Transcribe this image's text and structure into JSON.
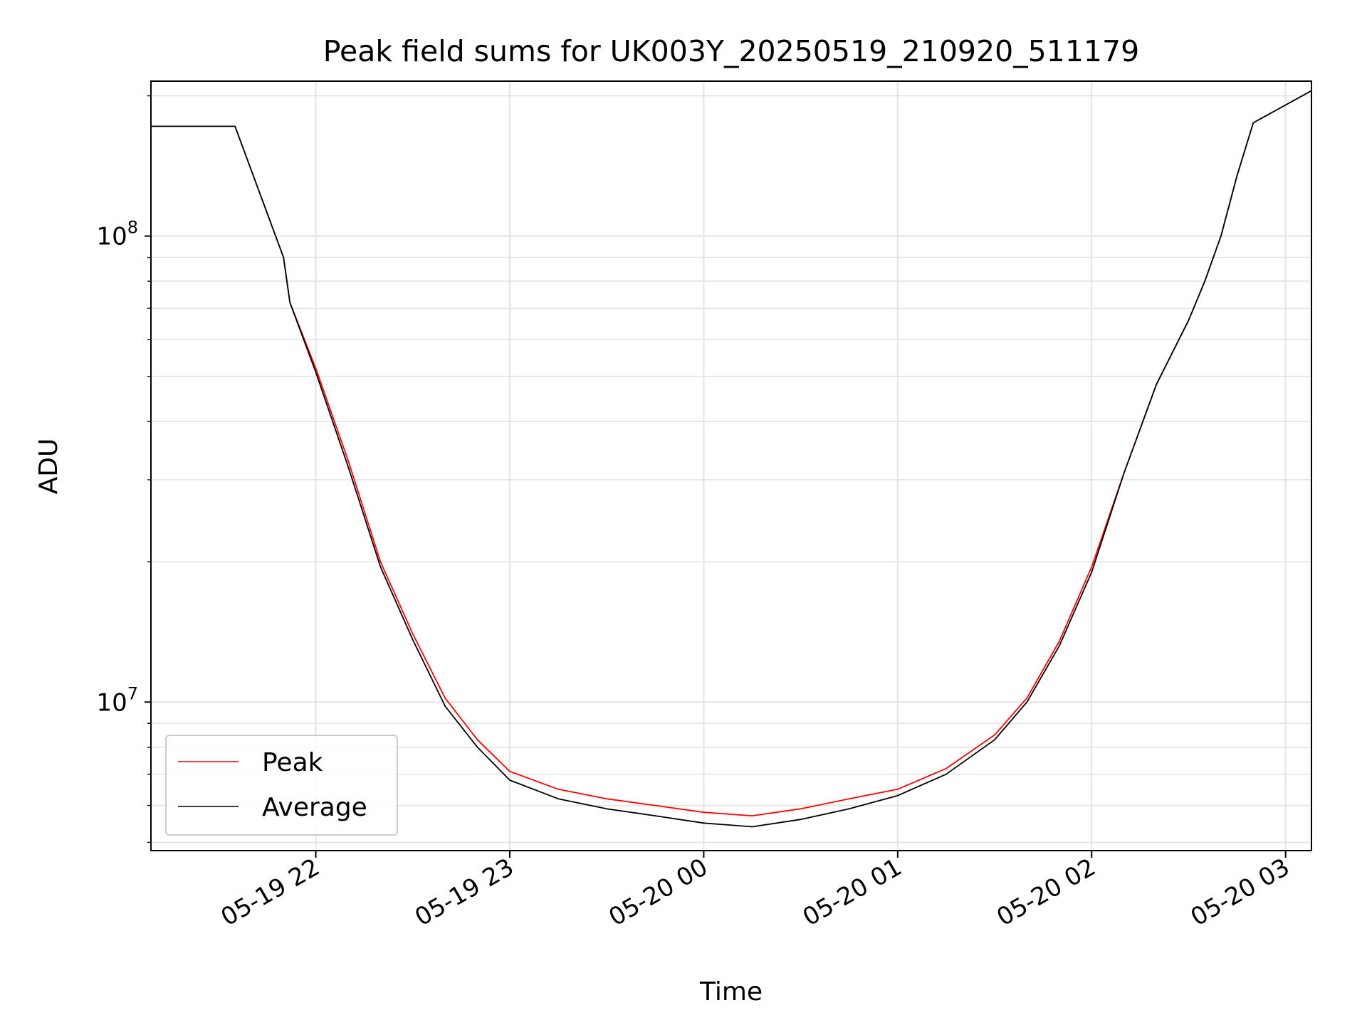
{
  "chart_data": {
    "type": "line",
    "title": "Peak field sums for UK003Y_20250519_210920_511179",
    "xlabel": "Time",
    "ylabel": "ADU",
    "yscale": "log",
    "xlim": [
      "2025-05-19 21:09",
      "2025-05-20 03:08"
    ],
    "ylim": [
      4800000,
      215000000
    ],
    "grid": true,
    "legend_position": "lower-left",
    "x_ticks": [
      "05-19 22",
      "05-19 23",
      "05-20 00",
      "05-20 01",
      "05-20 02",
      "05-20 03"
    ],
    "y_ticks": [
      {
        "value": 10000000,
        "base": "10",
        "exp": "7"
      },
      {
        "value": 100000000,
        "base": "10",
        "exp": "8"
      }
    ],
    "x": [
      "2025-05-19 21:09",
      "2025-05-19 21:35",
      "2025-05-19 21:50",
      "2025-05-19 21:52",
      "2025-05-19 22:00",
      "2025-05-19 22:10",
      "2025-05-19 22:20",
      "2025-05-19 22:30",
      "2025-05-19 22:40",
      "2025-05-19 22:50",
      "2025-05-19 23:00",
      "2025-05-19 23:15",
      "2025-05-19 23:30",
      "2025-05-19 23:45",
      "2025-05-20 00:00",
      "2025-05-20 00:15",
      "2025-05-20 00:30",
      "2025-05-20 00:45",
      "2025-05-20 01:00",
      "2025-05-20 01:15",
      "2025-05-20 01:30",
      "2025-05-20 01:40",
      "2025-05-20 01:50",
      "2025-05-20 02:00",
      "2025-05-20 02:10",
      "2025-05-20 02:20",
      "2025-05-20 02:30",
      "2025-05-20 02:35",
      "2025-05-20 02:40",
      "2025-05-20 02:45",
      "2025-05-20 02:50",
      "2025-05-20 03:08"
    ],
    "series": [
      {
        "name": "Peak",
        "color": "#ff0000",
        "values": [
          172000000,
          172000000,
          90000000,
          72000000,
          52000000,
          33000000,
          20000000,
          14000000,
          10200000,
          8300000,
          7100000,
          6500000,
          6200000,
          6000000,
          5800000,
          5700000,
          5900000,
          6200000,
          6500000,
          7200000,
          8500000,
          10200000,
          13500000,
          19500000,
          31000000,
          48000000,
          66000000,
          80000000,
          100000000,
          135000000,
          175000000,
          205000000
        ]
      },
      {
        "name": "Average",
        "color": "#000000",
        "values": [
          172000000,
          172000000,
          90000000,
          72000000,
          51000000,
          32000000,
          19500000,
          13600000,
          9800000,
          8000000,
          6800000,
          6200000,
          5900000,
          5700000,
          5500000,
          5400000,
          5600000,
          5900000,
          6300000,
          7000000,
          8300000,
          10000000,
          13200000,
          19000000,
          31000000,
          48000000,
          66000000,
          80000000,
          100000000,
          135000000,
          175000000,
          205000000
        ]
      }
    ]
  }
}
